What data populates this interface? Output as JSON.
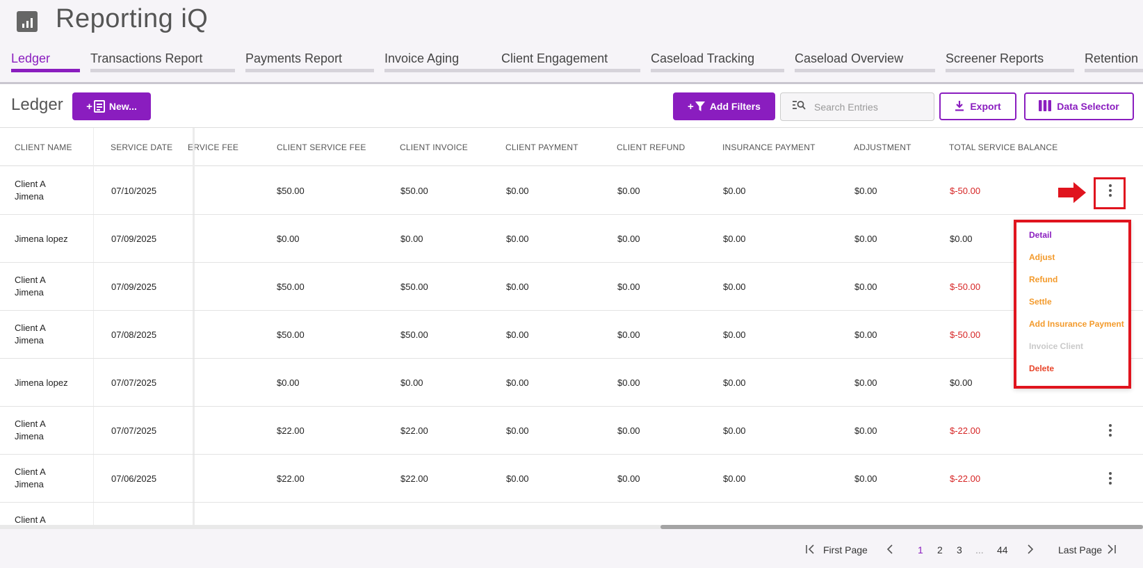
{
  "app": {
    "title": "Reporting iQ",
    "logo_icon": "bar-chart-icon"
  },
  "tabs": [
    {
      "label": "Ledger",
      "active": true
    },
    {
      "label": "Transactions Report"
    },
    {
      "label": "Payments Report"
    },
    {
      "label": "Invoice Aging"
    },
    {
      "label": "Client Engagement"
    },
    {
      "label": "Caseload Tracking"
    },
    {
      "label": "Caseload Overview"
    },
    {
      "label": "Screener Reports"
    },
    {
      "label": "Retention"
    }
  ],
  "toolbar": {
    "title": "Ledger",
    "new_label": "New...",
    "add_filters_label": "Add Filters",
    "search_placeholder": "Search Entries",
    "export_label": "Export",
    "data_selector_label": "Data Selector"
  },
  "table": {
    "headers": [
      "CLIENT NAME",
      "SERVICE DATE",
      "ERVICE FEE",
      "CLIENT SERVICE FEE",
      "CLIENT INVOICE",
      "CLIENT PAYMENT",
      "CLIENT REFUND",
      "INSURANCE PAYMENT",
      "ADJUSTMENT",
      "TOTAL SERVICE BALANCE"
    ],
    "rows": [
      {
        "name1": "Client A",
        "name2": "Jimena",
        "date": "07/10/2025",
        "fee": "$50.00",
        "invoice": "$50.00",
        "payment": "$0.00",
        "refund": "$0.00",
        "insurance": "$0.00",
        "adjustment": "$0.00",
        "balance": "$-50.00"
      },
      {
        "name1": "Jimena lopez",
        "name2": "",
        "date": "07/09/2025",
        "fee": "$0.00",
        "invoice": "$0.00",
        "payment": "$0.00",
        "refund": "$0.00",
        "insurance": "$0.00",
        "adjustment": "$0.00",
        "balance": "$0.00"
      },
      {
        "name1": "Client A",
        "name2": "Jimena",
        "date": "07/09/2025",
        "fee": "$50.00",
        "invoice": "$50.00",
        "payment": "$0.00",
        "refund": "$0.00",
        "insurance": "$0.00",
        "adjustment": "$0.00",
        "balance": "$-50.00"
      },
      {
        "name1": "Client A",
        "name2": "Jimena",
        "date": "07/08/2025",
        "fee": "$50.00",
        "invoice": "$50.00",
        "payment": "$0.00",
        "refund": "$0.00",
        "insurance": "$0.00",
        "adjustment": "$0.00",
        "balance": "$-50.00"
      },
      {
        "name1": "Jimena lopez",
        "name2": "",
        "date": "07/07/2025",
        "fee": "$0.00",
        "invoice": "$0.00",
        "payment": "$0.00",
        "refund": "$0.00",
        "insurance": "$0.00",
        "adjustment": "$0.00",
        "balance": "$0.00"
      },
      {
        "name1": "Client A",
        "name2": "Jimena",
        "date": "07/07/2025",
        "fee": "$22.00",
        "invoice": "$22.00",
        "payment": "$0.00",
        "refund": "$0.00",
        "insurance": "$0.00",
        "adjustment": "$0.00",
        "balance": "$-22.00"
      },
      {
        "name1": "Client A",
        "name2": "Jimena",
        "date": "07/06/2025",
        "fee": "$22.00",
        "invoice": "$22.00",
        "payment": "$0.00",
        "refund": "$0.00",
        "insurance": "$0.00",
        "adjustment": "$0.00",
        "balance": "$-22.00"
      },
      {
        "name1": "Client A",
        "name2": "",
        "date": "",
        "fee": "",
        "invoice": "",
        "payment": "",
        "refund": "",
        "insurance": "",
        "adjustment": "",
        "balance": ""
      }
    ]
  },
  "row_menu": {
    "items": [
      {
        "label": "Detail",
        "color": "#8a1dbf"
      },
      {
        "label": "Adjust",
        "color": "#f39a2b"
      },
      {
        "label": "Refund",
        "color": "#f39a2b"
      },
      {
        "label": "Settle",
        "color": "#f39a2b"
      },
      {
        "label": "Add Insurance Payment",
        "color": "#f39a2b"
      },
      {
        "label": "Invoice Client",
        "color": "#c9c9c9"
      },
      {
        "label": "Delete",
        "color": "#e8452a"
      }
    ]
  },
  "pager": {
    "first_label": "First Page",
    "pages": [
      "1",
      "2",
      "3"
    ],
    "ellipsis": "...",
    "last_number": "44",
    "last_label": "Last Page",
    "current_page": "1"
  },
  "colors": {
    "accent": "#8a1dbf",
    "negative": "#d62424",
    "highlight": "#e0141e"
  }
}
